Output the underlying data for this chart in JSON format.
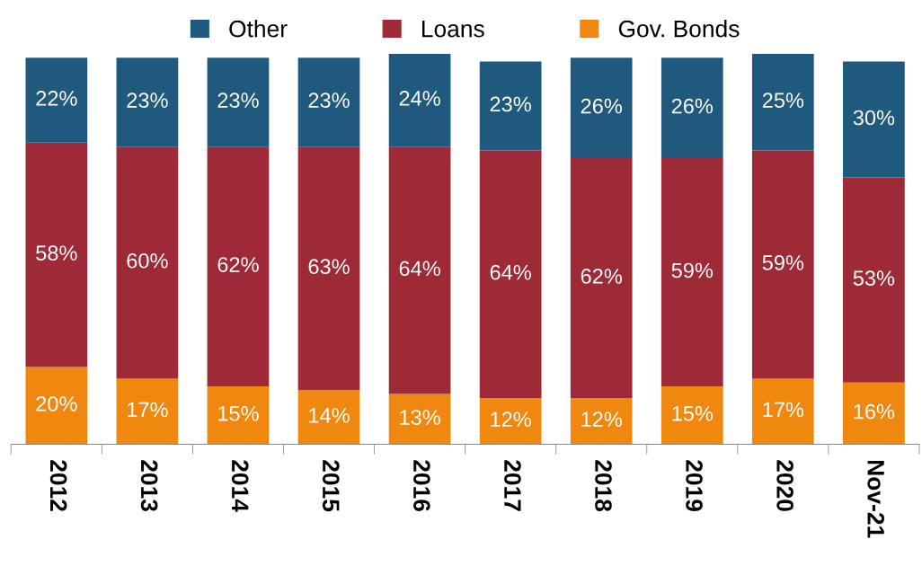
{
  "chart_data": {
    "type": "bar",
    "stacked": true,
    "legend": "top",
    "grid": false,
    "categories": [
      "2012",
      "2013",
      "2014",
      "2015",
      "2016",
      "2017",
      "2018",
      "2019",
      "2020",
      "Nov-21"
    ],
    "series": [
      {
        "name": "Gov. Bonds",
        "color": "#f0870f",
        "values": [
          20,
          17,
          15,
          14,
          13,
          12,
          12,
          15,
          17,
          16
        ],
        "value_labels": [
          "20%",
          "17%",
          "15%",
          "14%",
          "13%",
          "12%",
          "12%",
          "15%",
          "17%",
          "16%"
        ]
      },
      {
        "name": "Loans",
        "color": "#9e2a37",
        "values": [
          58,
          60,
          62,
          63,
          64,
          64,
          62,
          59,
          59,
          53
        ],
        "value_labels": [
          "58%",
          "60%",
          "62%",
          "63%",
          "64%",
          "64%",
          "62%",
          "59%",
          "59%",
          "53%"
        ]
      },
      {
        "name": "Other",
        "color": "#1f5a7e",
        "values": [
          22,
          23,
          23,
          23,
          24,
          23,
          26,
          26,
          25,
          30
        ],
        "value_labels": [
          "22%",
          "23%",
          "23%",
          "23%",
          "24%",
          "23%",
          "26%",
          "26%",
          "25%",
          "30%"
        ]
      }
    ]
  }
}
